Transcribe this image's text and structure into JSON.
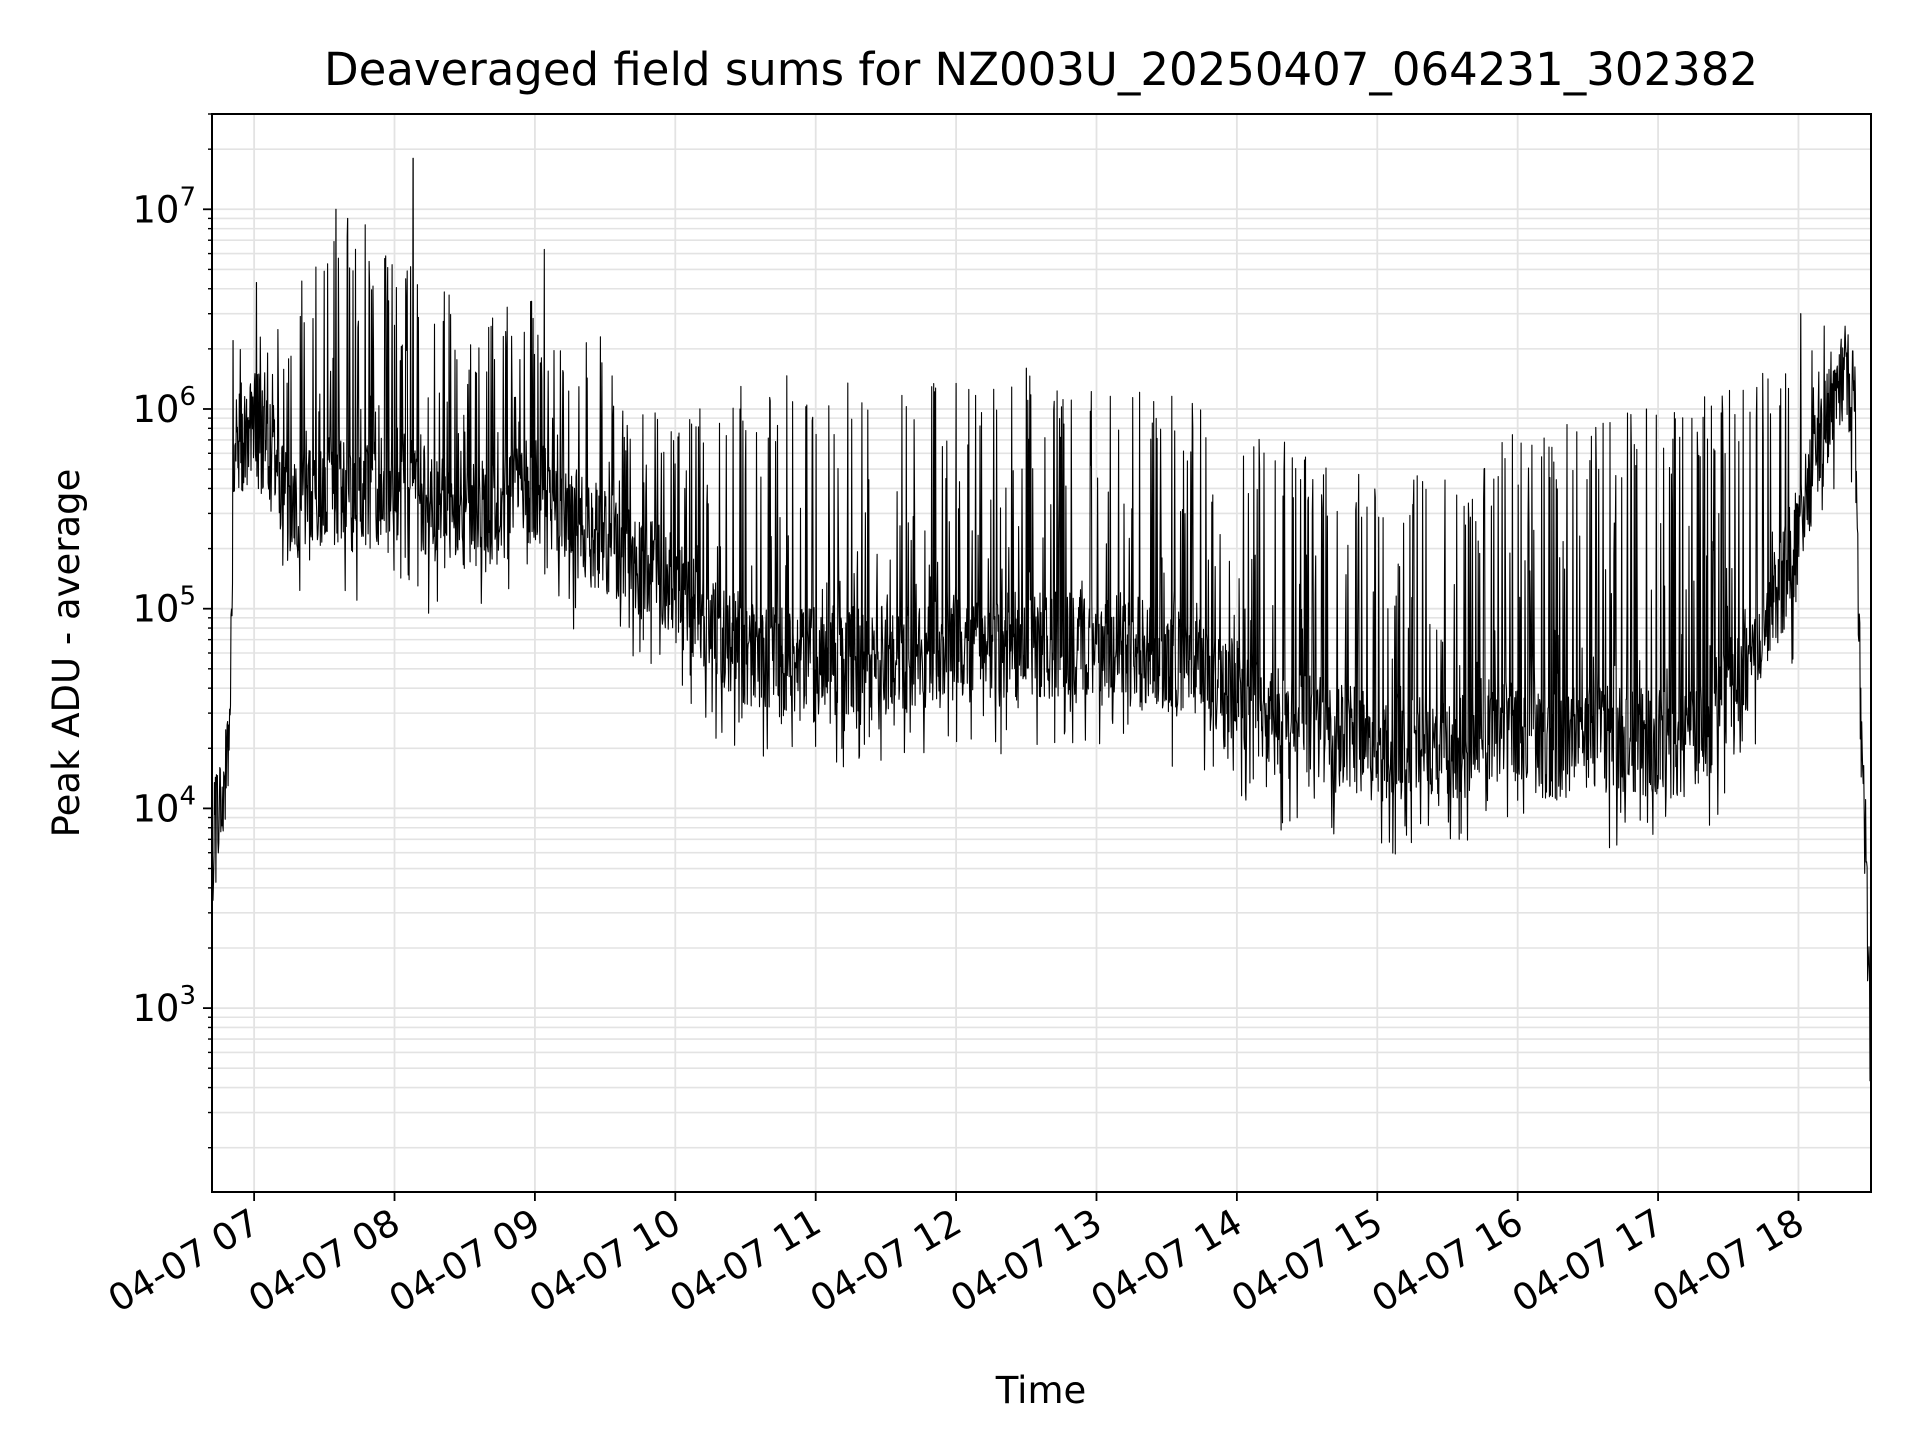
{
  "chart_data": {
    "type": "line",
    "title": "Deaveraged field sums for NZ003U_20250407_064231_302382",
    "xlabel": "Time",
    "ylabel": "Peak ADU - average",
    "yscale": "log",
    "grid": true,
    "grid_minor": true,
    "line_color": "#000000",
    "grid_color": "#e3e3e3",
    "xlim": [
      "2025-04-07 06:42",
      "2025-04-07 18:31"
    ],
    "ylim": [
      120,
      30000000
    ],
    "x_ticks": [
      "04-07 07",
      "04-07 08",
      "04-07 09",
      "04-07 10",
      "04-07 11",
      "04-07 12",
      "04-07 13",
      "04-07 14",
      "04-07 15",
      "04-07 16",
      "04-07 17",
      "04-07 18"
    ],
    "y_ticks": [
      {
        "base": "10",
        "exp": "3",
        "value": 1000
      },
      {
        "base": "10",
        "exp": "4",
        "value": 10000
      },
      {
        "base": "10",
        "exp": "5",
        "value": 100000
      },
      {
        "base": "10",
        "exp": "6",
        "value": 1000000
      },
      {
        "base": "10",
        "exp": "7",
        "value": 10000000
      }
    ],
    "series": [
      {
        "baseline": {
          "x": [
            "2025-04-07 06:42",
            "2025-04-07 06:45",
            "2025-04-07 06:49",
            "2025-04-07 06:52",
            "2025-04-07 07:00",
            "2025-04-07 07:08",
            "2025-04-07 07:15",
            "2025-04-07 07:30",
            "2025-04-07 07:45",
            "2025-04-07 08:00",
            "2025-04-07 08:20",
            "2025-04-07 08:40",
            "2025-04-07 09:00",
            "2025-04-07 09:20",
            "2025-04-07 09:40",
            "2025-04-07 09:55",
            "2025-04-07 10:10",
            "2025-04-07 10:30",
            "2025-04-07 11:00",
            "2025-04-07 11:30",
            "2025-04-07 12:00",
            "2025-04-07 12:30",
            "2025-04-07 13:00",
            "2025-04-07 13:30",
            "2025-04-07 13:50",
            "2025-04-07 14:00",
            "2025-04-07 14:15",
            "2025-04-07 14:40",
            "2025-04-07 15:00",
            "2025-04-07 15:20",
            "2025-04-07 15:40",
            "2025-04-07 15:55",
            "2025-04-07 16:10",
            "2025-04-07 16:30",
            "2025-04-07 16:50",
            "2025-04-07 17:10",
            "2025-04-07 17:20",
            "2025-04-07 17:40",
            "2025-04-07 17:55",
            "2025-04-07 18:05",
            "2025-04-07 18:15",
            "2025-04-07 18:20",
            "2025-04-07 18:24",
            "2025-04-07 18:27",
            "2025-04-07 18:29",
            "2025-04-07 18:31"
          ],
          "y": [
            6000,
            10000,
            16000,
            600000,
            800000,
            500000,
            300000,
            400000,
            350000,
            450000,
            300000,
            280000,
            400000,
            250000,
            180000,
            140000,
            90000,
            60000,
            55000,
            55000,
            60000,
            65000,
            70000,
            55000,
            45000,
            40000,
            28000,
            24000,
            20000,
            22000,
            20000,
            28000,
            20000,
            22000,
            22000,
            20000,
            25000,
            60000,
            150000,
            400000,
            1200000,
            1500000,
            1200000,
            15000,
            5000,
            400
          ]
        },
        "spike_envelope": {
          "x": [
            "2025-04-07 06:52",
            "2025-04-07 07:10",
            "2025-04-07 07:40",
            "2025-04-07 08:10",
            "2025-04-07 08:40",
            "2025-04-07 09:00",
            "2025-04-07 09:30",
            "2025-04-07 10:00",
            "2025-04-07 10:30",
            "2025-04-07 11:00",
            "2025-04-07 11:30",
            "2025-04-07 12:00",
            "2025-04-07 12:30",
            "2025-04-07 13:00",
            "2025-04-07 13:30",
            "2025-04-07 14:00",
            "2025-04-07 14:30",
            "2025-04-07 15:00",
            "2025-04-07 15:30",
            "2025-04-07 16:00",
            "2025-04-07 16:30",
            "2025-04-07 17:00",
            "2025-04-07 17:30",
            "2025-04-07 18:00",
            "2025-04-07 18:20"
          ],
          "y": [
            2000000,
            3000000,
            10000000,
            5000000,
            3000000,
            4000000,
            1800000,
            1000000,
            1500000,
            1500000,
            1400000,
            1400000,
            1500000,
            1500000,
            1400000,
            800000,
            700000,
            450000,
            500000,
            800000,
            900000,
            1000000,
            1300000,
            1800000,
            2600000
          ]
        },
        "peaks": [
          {
            "x": "2025-04-07 06:51",
            "y": 2200000
          },
          {
            "x": "2025-04-07 07:01",
            "y": 4300000
          },
          {
            "x": "2025-04-07 07:35",
            "y": 10000000
          },
          {
            "x": "2025-04-07 07:40",
            "y": 9000000
          },
          {
            "x": "2025-04-07 08:08",
            "y": 18000000
          },
          {
            "x": "2025-04-07 09:04",
            "y": 6300000
          },
          {
            "x": "2025-04-07 09:28",
            "y": 2300000
          },
          {
            "x": "2025-04-07 12:30",
            "y": 1600000
          },
          {
            "x": "2025-04-07 16:55",
            "y": 1000000
          },
          {
            "x": "2025-04-07 18:01",
            "y": 3000000
          },
          {
            "x": "2025-04-07 18:11",
            "y": 2600000
          }
        ]
      }
    ]
  }
}
